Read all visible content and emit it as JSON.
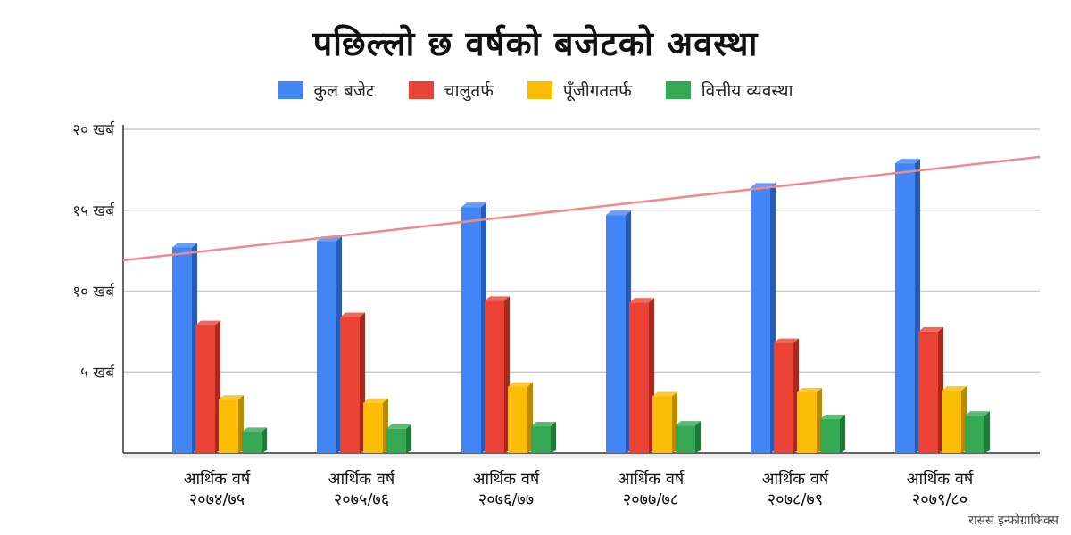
{
  "chart_data": {
    "type": "bar",
    "title": "पछिल्लो  छ वर्षको बजेटको अवस्था",
    "categories": [
      [
        "आर्थिक वर्ष",
        "२०७४/७५"
      ],
      [
        "आर्थिक वर्ष",
        "२०७५/७६"
      ],
      [
        "आर्थिक वर्ष",
        "२०७६/७७"
      ],
      [
        "आर्थिक वर्ष",
        "२०७७/७८"
      ],
      [
        "आर्थिक वर्ष",
        "२०७८/७९"
      ],
      [
        "आर्थिक वर्ष",
        "२०७९/८०"
      ]
    ],
    "series": [
      {
        "name": "कुल बजेट",
        "color": "#4285f4",
        "side": "#2a5bb8",
        "values": [
          12.7,
          13.1,
          15.2,
          14.7,
          16.4,
          17.9
        ]
      },
      {
        "name": "चालुतर्फ",
        "color": "#ea4335",
        "side": "#a82a1f",
        "values": [
          7.9,
          8.4,
          9.4,
          9.3,
          6.8,
          7.5
        ]
      },
      {
        "name": "पूँजीगततर्फ",
        "color": "#fbbc04",
        "side": "#b98a00",
        "values": [
          3.3,
          3.1,
          4.1,
          3.5,
          3.75,
          3.85
        ]
      },
      {
        "name": "वित्तीय व्यवस्था",
        "color": "#34a853",
        "side": "#1f7a38",
        "values": [
          1.3,
          1.5,
          1.65,
          1.7,
          2.1,
          2.3
        ]
      }
    ],
    "yticks": [
      {
        "value": 5,
        "label": "५ खर्ब"
      },
      {
        "value": 10,
        "label": "१० खर्ब"
      },
      {
        "value": 15,
        "label": "१५ खर्ब"
      },
      {
        "value": 20,
        "label": "२० खर्ब"
      }
    ],
    "ylim": [
      0,
      20
    ],
    "ylabel": "",
    "xlabel": "",
    "grid": true,
    "legend_position": "top-center",
    "trendline": {
      "color": "#f08a8a",
      "start": 11.9,
      "end": 18.3
    }
  },
  "credit": "रासस  इन्फोग्राफिक्स"
}
